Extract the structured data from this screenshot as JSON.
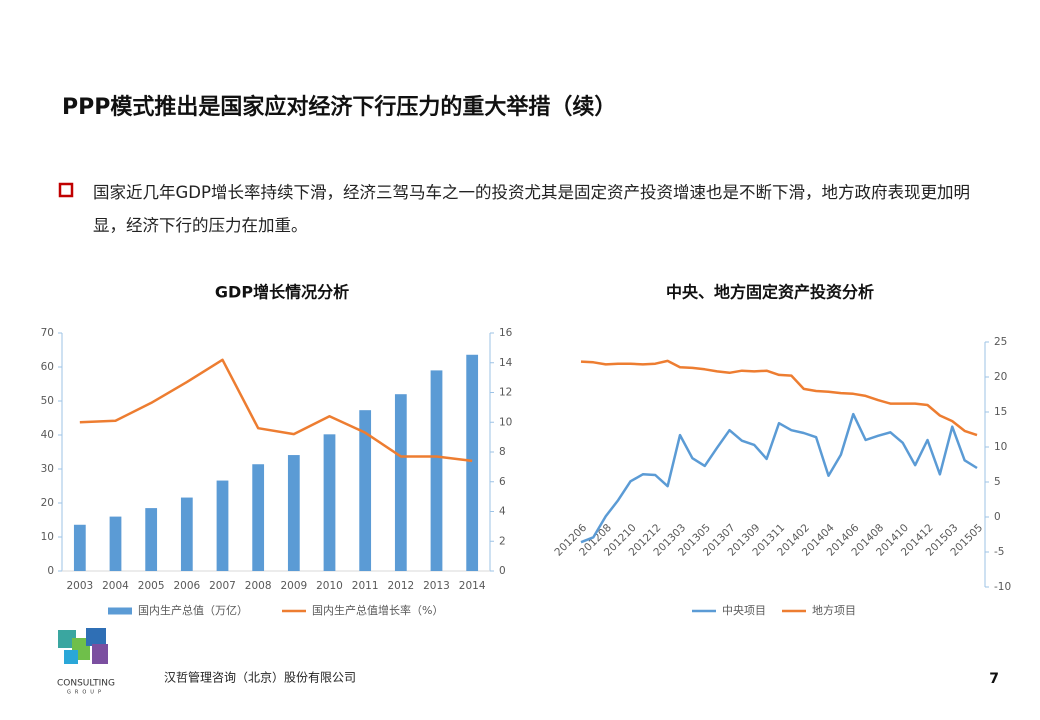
{
  "header": {
    "title": "PPP模式推出是国家应对经济下行压力的重大举措（续）"
  },
  "bullet": {
    "text": "国家近几年GDP增长率持续下滑，经济三驾马车之一的投资尤其是固定资产投资增速也是不断下滑，地方政府表现更加明显，经济下行的压力在加重。"
  },
  "chart_data": [
    {
      "type": "bar",
      "title": "GDP增长情况分析",
      "categories": [
        "2003",
        "2004",
        "2005",
        "2006",
        "2007",
        "2008",
        "2009",
        "2010",
        "2011",
        "2012",
        "2013",
        "2014"
      ],
      "series": [
        {
          "name": "国内生产总值（万亿）",
          "type": "bar",
          "color": "#5b9bd5",
          "values": [
            13.6,
            16.0,
            18.5,
            21.6,
            26.6,
            31.4,
            34.1,
            40.2,
            47.3,
            52.0,
            59.0,
            63.6
          ]
        },
        {
          "name": "国内生产总值增长率（%）",
          "type": "line",
          "axis": "y2",
          "color": "#ed7d31",
          "values": [
            10.0,
            10.1,
            11.3,
            12.7,
            14.2,
            9.6,
            9.2,
            10.4,
            9.3,
            7.7,
            7.7,
            7.4
          ]
        }
      ],
      "ylim": [
        0,
        70
      ],
      "yticks": [
        0,
        10,
        20,
        30,
        40,
        50,
        60,
        70
      ],
      "y2lim": [
        0,
        16
      ],
      "y2ticks": [
        0,
        2,
        4,
        6,
        8,
        10,
        12,
        14,
        16
      ],
      "legend": "bottom"
    },
    {
      "type": "line",
      "title": "中央、地方固定资产投资分析",
      "categories": [
        "201206",
        null,
        "201208",
        null,
        "201210",
        null,
        "201212",
        null,
        "201303",
        null,
        "201305",
        null,
        "201307",
        null,
        "201309",
        null,
        "201311",
        null,
        "201402",
        null,
        "201404",
        null,
        "201406",
        null,
        "201408",
        null,
        "201410",
        null,
        "201412",
        null,
        "201503",
        null,
        "201505"
      ],
      "series": [
        {
          "name": "中央项目",
          "axis": "y2",
          "color": "#5b9bd5",
          "values": [
            -3.6,
            -2.9,
            0.1,
            2.4,
            5.1,
            6.1,
            6.0,
            4.4,
            11.7,
            8.4,
            7.3,
            9.9,
            12.4,
            10.9,
            10.3,
            8.3,
            13.4,
            12.4,
            12.0,
            11.4,
            5.9,
            8.9,
            14.7,
            11.0,
            11.6,
            12.1,
            10.6,
            7.4,
            11.0,
            6.1,
            12.9,
            8.1,
            7.0
          ]
        },
        {
          "name": "地方项目",
          "axis": "y2",
          "color": "#ed7d31",
          "values": [
            22.2,
            22.1,
            21.8,
            21.9,
            21.9,
            21.8,
            21.9,
            22.3,
            21.4,
            21.3,
            21.1,
            20.8,
            20.6,
            20.9,
            20.8,
            20.9,
            20.3,
            20.2,
            18.3,
            18.0,
            17.9,
            17.7,
            17.6,
            17.3,
            16.7,
            16.2,
            16.2,
            16.2,
            16.0,
            14.5,
            13.7,
            12.3,
            11.7
          ]
        }
      ],
      "y2lim": [
        -10,
        25
      ],
      "y2ticks": [
        -10,
        -5,
        0,
        5,
        10,
        15,
        20,
        25
      ],
      "legend": "bottom"
    }
  ],
  "footer": {
    "company": "汉哲管理咨询（北京）股份有限公司",
    "page": 7
  },
  "logo": {
    "name": "CONSULTING",
    "group": "GROUP"
  }
}
